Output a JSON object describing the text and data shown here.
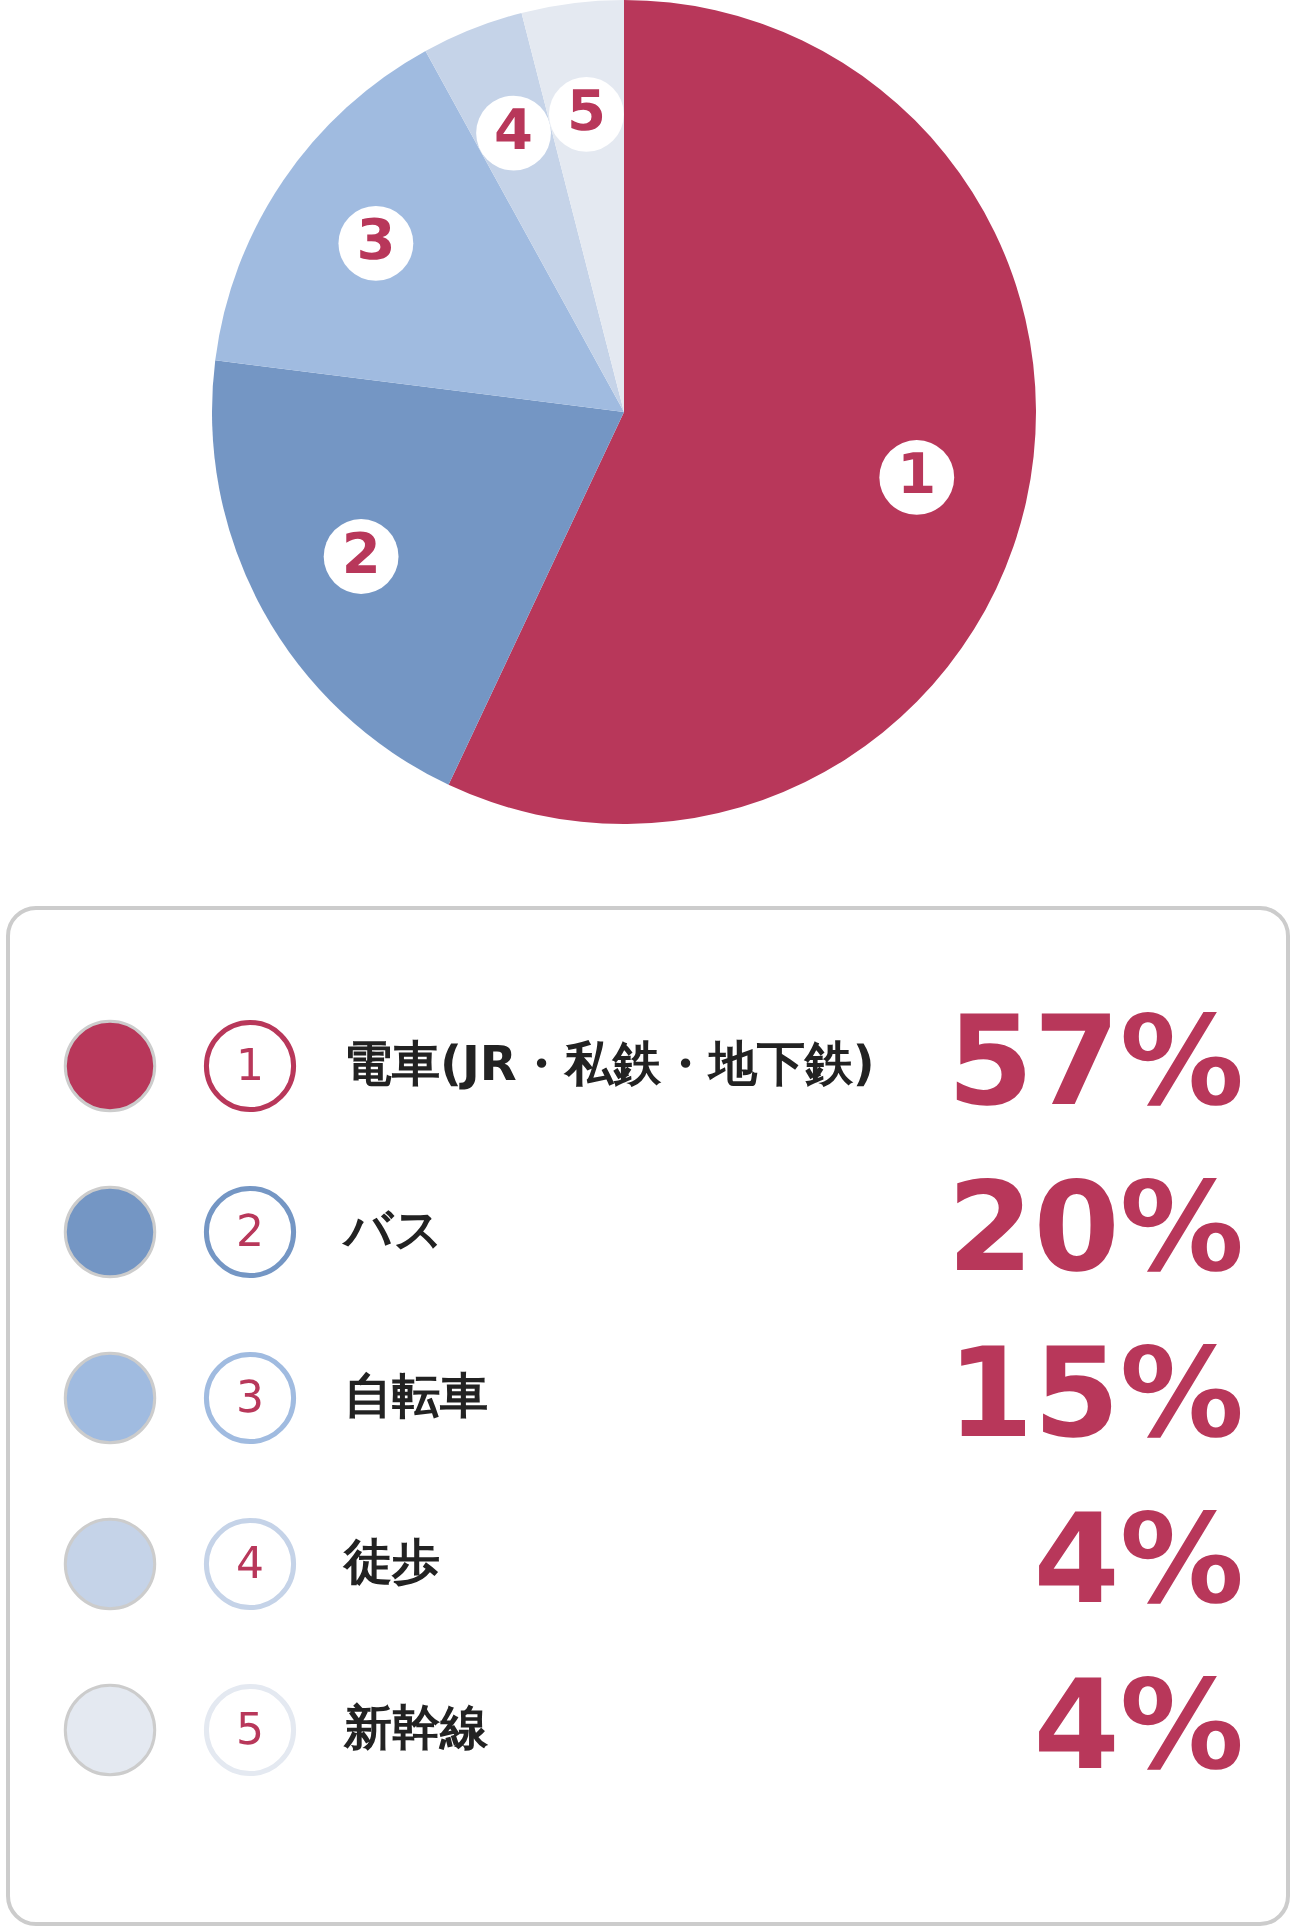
{
  "chart_data": {
    "type": "pie",
    "categories": [
      "電車(JR・私鉄・地下鉄)",
      "バス",
      "自転車",
      "徒歩",
      "新幹線"
    ],
    "values": [
      57,
      20,
      15,
      4,
      4
    ],
    "colors": [
      "#b8375a",
      "#7496c4",
      "#a0bbe0",
      "#c5d3e8",
      "#e4e9f1"
    ],
    "value_labels": [
      "57%",
      "20%",
      "15%",
      "4%",
      "4%"
    ],
    "annotations": [
      "1",
      "2",
      "3",
      "4",
      "5"
    ],
    "legend": "bottom"
  }
}
